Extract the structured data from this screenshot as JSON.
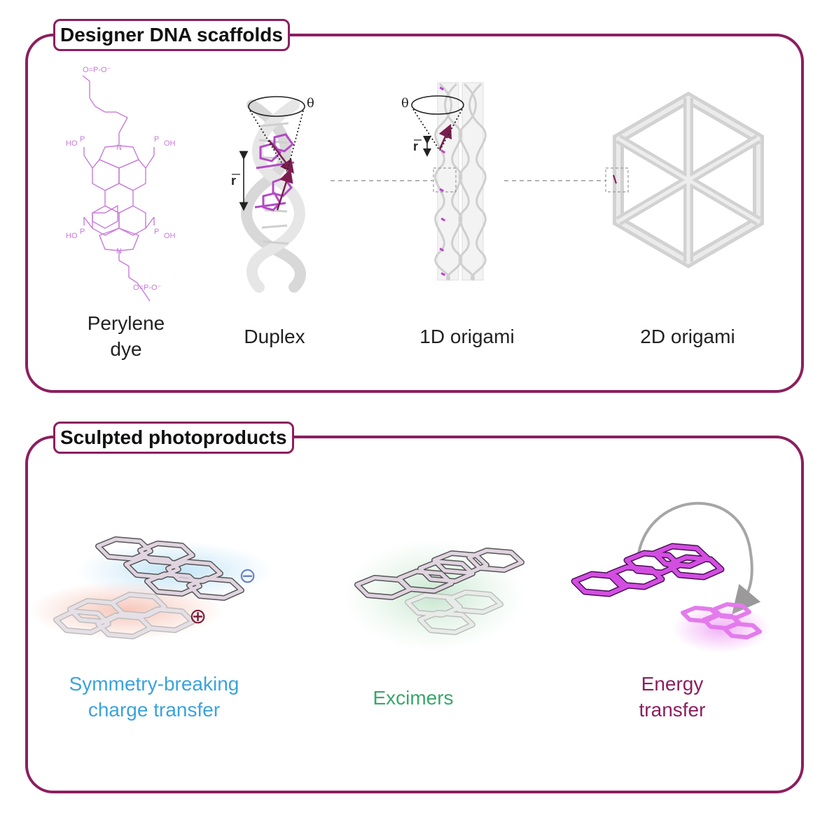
{
  "panels": {
    "top": {
      "title": "Designer DNA scaffolds",
      "items": {
        "perylene": {
          "line1": "Perylene",
          "line2": "dye"
        },
        "duplex": {
          "label": "Duplex"
        },
        "origami1d": {
          "label": "1D origami"
        },
        "origami2d": {
          "label": "2D origami"
        }
      },
      "annotations": {
        "theta": "θ",
        "r_vector": "r"
      },
      "molecule": {
        "phosphate_top": "O=P-O⁻",
        "phosphate_bottom": "O=P-O⁻",
        "ho_left_top": "HO",
        "oh_right_top": "OH",
        "ho_left_bottom": "HO",
        "oh_right_bottom": "OH",
        "n_label": "N",
        "o_label": "O",
        "p_label": "P"
      }
    },
    "bottom": {
      "title": "Sculpted photoproducts",
      "items": {
        "sbct": {
          "line1": "Symmetry-breaking",
          "line2": "charge transfer"
        },
        "excimers": {
          "label": "Excimers"
        },
        "energy": {
          "line1": "Energy",
          "line2": "transfer"
        }
      },
      "charges": {
        "minus": "⊖",
        "plus": "⊕"
      }
    }
  },
  "colors": {
    "frame": "#8b1f5f",
    "dye": "#c77bd9",
    "sbct_text": "#3aa3dc",
    "excimer_text": "#3aa66a",
    "energy_text": "#8b1f5f",
    "magenta": "#d34ee0"
  }
}
